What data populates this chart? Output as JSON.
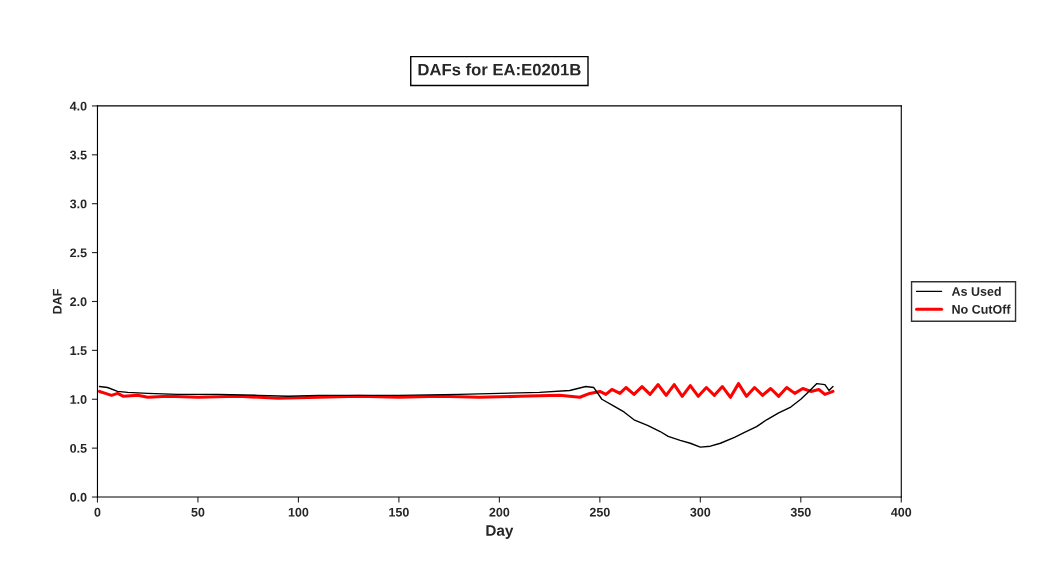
{
  "chart_data": {
    "type": "line",
    "title": "DAFs for EA:E0201B",
    "xlabel": "Day",
    "ylabel": "DAF",
    "xlim": [
      0,
      400
    ],
    "xticks": [
      0,
      50,
      100,
      150,
      200,
      250,
      300,
      350,
      400
    ],
    "ylim": [
      0,
      4
    ],
    "yticks": [
      {
        "value": 0,
        "label": "0.0"
      },
      {
        "value": 0.5,
        "label": "0.5"
      },
      {
        "value": 1,
        "label": "1.0"
      },
      {
        "value": 1.5,
        "label": "1.5"
      },
      {
        "value": 2,
        "label": "2.0"
      },
      {
        "value": 2.5,
        "label": "2.5"
      },
      {
        "value": 3,
        "label": "3.0"
      },
      {
        "value": 3.5,
        "label": "3.5"
      },
      {
        "value": 4,
        "label": "4.0"
      }
    ],
    "grid": false,
    "legend": "right",
    "marker": "none",
    "line_style": "solid",
    "series": [
      {
        "name": "As Used",
        "color": "#000000",
        "x": [
          1,
          5,
          10,
          15,
          25,
          40,
          60,
          80,
          95,
          110,
          150,
          180,
          200,
          220,
          235,
          243,
          247,
          251,
          257,
          262,
          267,
          274,
          280,
          284,
          290,
          295,
          300,
          305,
          310,
          317,
          322,
          328,
          333,
          339,
          345,
          350,
          353,
          358,
          362,
          364,
          366
        ],
        "values": [
          1.13,
          1.12,
          1.08,
          1.07,
          1.06,
          1.05,
          1.05,
          1.04,
          1.03,
          1.04,
          1.04,
          1.05,
          1.06,
          1.07,
          1.09,
          1.13,
          1.12,
          1.0,
          0.93,
          0.87,
          0.79,
          0.73,
          0.67,
          0.62,
          0.58,
          0.55,
          0.51,
          0.52,
          0.55,
          0.61,
          0.66,
          0.72,
          0.79,
          0.86,
          0.92,
          1.0,
          1.06,
          1.16,
          1.15,
          1.09,
          1.13
        ]
      },
      {
        "name": "No CutOff",
        "color": "#ff0000",
        "x": [
          1,
          4,
          7,
          10,
          13,
          20,
          25,
          35,
          50,
          70,
          90,
          110,
          130,
          150,
          170,
          190,
          210,
          230,
          240,
          245,
          250,
          253,
          256,
          260,
          263,
          267,
          271,
          275,
          279,
          283,
          287,
          291,
          295,
          299,
          303,
          307,
          311,
          315,
          319,
          323,
          327,
          331,
          335,
          339,
          343,
          347,
          351,
          355,
          359,
          362,
          366
        ],
        "values": [
          1.08,
          1.06,
          1.04,
          1.06,
          1.03,
          1.04,
          1.02,
          1.03,
          1.02,
          1.03,
          1.01,
          1.02,
          1.03,
          1.02,
          1.03,
          1.02,
          1.03,
          1.04,
          1.02,
          1.06,
          1.08,
          1.05,
          1.1,
          1.06,
          1.12,
          1.05,
          1.13,
          1.05,
          1.15,
          1.04,
          1.15,
          1.03,
          1.14,
          1.03,
          1.12,
          1.04,
          1.13,
          1.02,
          1.16,
          1.03,
          1.12,
          1.04,
          1.11,
          1.03,
          1.12,
          1.06,
          1.11,
          1.08,
          1.1,
          1.05,
          1.08
        ]
      }
    ]
  }
}
